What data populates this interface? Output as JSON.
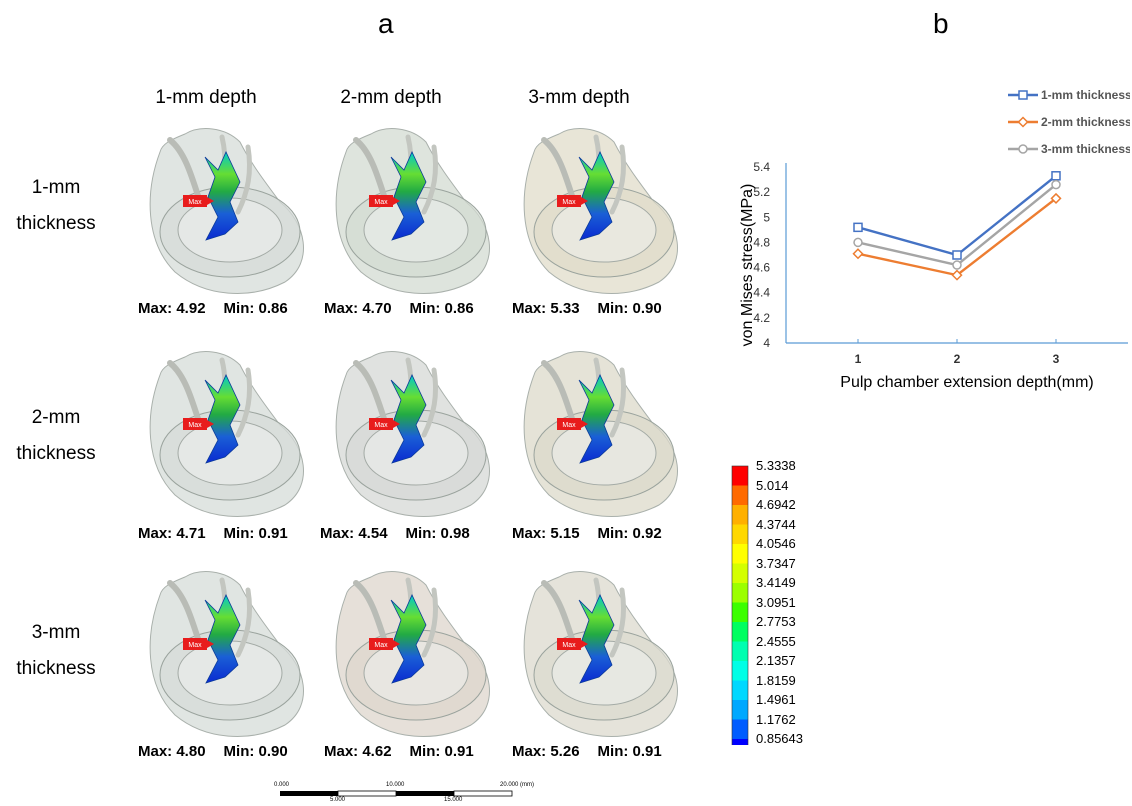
{
  "panel_a": {
    "letter": "a",
    "columns": [
      "1-mm depth",
      "2-mm depth",
      "3-mm depth"
    ],
    "rows": [
      {
        "label_line1": "1-mm",
        "label_line2": "thickness"
      },
      {
        "label_line1": "2-mm",
        "label_line2": "thickness"
      },
      {
        "label_line1": "3-mm",
        "label_line2": "thickness"
      }
    ],
    "max_tag": "Max",
    "cells": [
      [
        {
          "max": "Max: 4.92",
          "min": "Min: 0.86"
        },
        {
          "max": "Max: 4.70",
          "min": "Min: 0.86"
        },
        {
          "max": "Max: 5.33",
          "min": "Min: 0.90"
        }
      ],
      [
        {
          "max": "Max: 4.71",
          "min": "Min: 0.91"
        },
        {
          "max": "Max: 4.54",
          "min": "Min: 0.98"
        },
        {
          "max": "Max: 5.15",
          "min": "Min: 0.92"
        }
      ],
      [
        {
          "max": "Max: 4.80",
          "min": "Min: 0.90"
        },
        {
          "max": "Max: 4.62",
          "min": "Min: 0.91"
        },
        {
          "max": "Max: 5.26",
          "min": "Min: 0.91"
        }
      ]
    ],
    "shell_colors": [
      [
        "#d6dcd8",
        "#d3dbd2",
        "#e0dcc9"
      ],
      [
        "#d6dcd8",
        "#d5d8d5",
        "#dcd9ca"
      ],
      [
        "#d6dcd8",
        "#ddd5cc",
        "#dcdace"
      ]
    ],
    "color_legend": {
      "values": [
        "5.3338",
        "5.014",
        "4.6942",
        "4.3744",
        "4.0546",
        "3.7347",
        "3.4149",
        "3.0951",
        "2.7753",
        "2.4555",
        "2.1357",
        "1.8159",
        "1.4961",
        "1.1762",
        "0.85643"
      ],
      "colors": [
        "#ff0000",
        "#ff6a00",
        "#ffb000",
        "#ffd800",
        "#ffff00",
        "#d4ff00",
        "#9cff00",
        "#3cff00",
        "#00ff60",
        "#00ffb0",
        "#00ffe6",
        "#00d8ff",
        "#00a8ff",
        "#005cff",
        "#0000ff"
      ]
    },
    "scale_bar": {
      "top_labels": [
        "0.000",
        "10.000",
        "20.000 (mm)"
      ],
      "bottom_labels": [
        "5.000",
        "15.000"
      ]
    }
  },
  "chart_data": {
    "type": "line",
    "panel_letter": "b",
    "x": [
      1,
      2,
      3
    ],
    "xlabel": "Pulp chamber extension depth(mm)",
    "ylabel": "von Mises stress(MPa)",
    "ylim": [
      4,
      5.4
    ],
    "yticks": [
      "4",
      "4.2",
      "4.4",
      "4.6",
      "4.8",
      "5",
      "5.2",
      "5.4"
    ],
    "xticks": [
      "1",
      "2",
      "3"
    ],
    "legend_position": "top-right",
    "series": [
      {
        "name": "1-mm thickness",
        "values": [
          4.92,
          4.7,
          5.33
        ],
        "color": "#4472c4",
        "marker": "square"
      },
      {
        "name": "2-mm thickness",
        "values": [
          4.71,
          4.54,
          5.15
        ],
        "color": "#ed7d31",
        "marker": "diamond"
      },
      {
        "name": "3-mm thickness",
        "values": [
          4.8,
          4.62,
          5.26
        ],
        "color": "#a5a5a5",
        "marker": "circle"
      }
    ]
  }
}
